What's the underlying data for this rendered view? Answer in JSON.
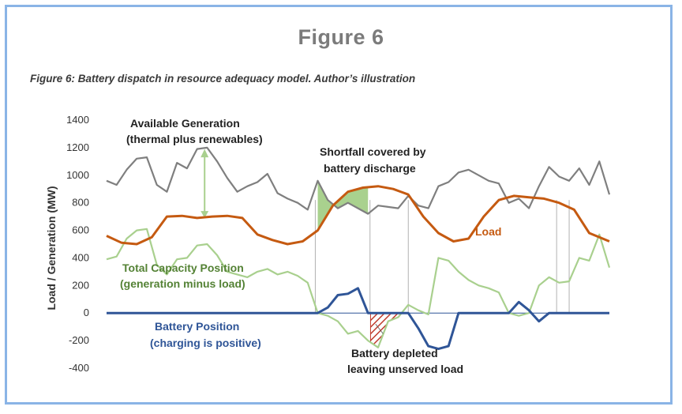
{
  "figure_title": "Figure 6",
  "caption": "Figure 6: Battery dispatch in resource adequacy model. Author’s illustration",
  "chart_data": {
    "type": "line",
    "ylabel": "Load / Generation (MW)",
    "ylim": [
      -400,
      1400
    ],
    "yticks": [
      -400,
      -200,
      0,
      200,
      400,
      600,
      800,
      1000,
      1200,
      1400
    ],
    "xlim": [
      0,
      100
    ],
    "series": [
      {
        "name": "Available Generation",
        "color": "#7f7f7f",
        "x": [
          0,
          2,
          4,
          6,
          8,
          10,
          12,
          14,
          16,
          18,
          20,
          22,
          24,
          26,
          28,
          30,
          32,
          34,
          36,
          38,
          40,
          42,
          44,
          46,
          48,
          50,
          52,
          54,
          56,
          58,
          60,
          62,
          64,
          66,
          68,
          70,
          72,
          74,
          76,
          78,
          80,
          82,
          84,
          86,
          88,
          90,
          92,
          94,
          96,
          98,
          100
        ],
        "values": [
          960,
          930,
          1040,
          1120,
          1130,
          930,
          880,
          1090,
          1050,
          1190,
          1200,
          1100,
          980,
          880,
          920,
          950,
          1010,
          870,
          830,
          800,
          750,
          960,
          820,
          760,
          800,
          760,
          720,
          780,
          770,
          760,
          850,
          780,
          760,
          920,
          950,
          1020,
          1040,
          1000,
          960,
          940,
          800,
          830,
          760,
          920,
          1060,
          990,
          960,
          1050,
          930,
          1100,
          860
        ]
      },
      {
        "name": "Load",
        "color": "#c55a11",
        "x": [
          0,
          3,
          6,
          9,
          12,
          15,
          18,
          21,
          24,
          27,
          30,
          33,
          36,
          39,
          42,
          45,
          48,
          51,
          54,
          57,
          60,
          63,
          66,
          69,
          72,
          75,
          78,
          81,
          84,
          87,
          90,
          93,
          96,
          100
        ],
        "values": [
          560,
          510,
          500,
          550,
          700,
          705,
          690,
          700,
          705,
          690,
          570,
          530,
          500,
          520,
          600,
          780,
          880,
          910,
          920,
          900,
          860,
          700,
          580,
          520,
          540,
          700,
          820,
          850,
          840,
          830,
          800,
          750,
          580,
          520
        ]
      },
      {
        "name": "Total Capacity Position",
        "color": "#a9d08e",
        "x": [
          0,
          2,
          4,
          6,
          8,
          10,
          12,
          14,
          16,
          18,
          20,
          22,
          24,
          26,
          28,
          30,
          32,
          34,
          36,
          38,
          40,
          42,
          44,
          46,
          48,
          50,
          52,
          54,
          56,
          58,
          60,
          62,
          64,
          66,
          68,
          70,
          72,
          74,
          76,
          78,
          80,
          82,
          84,
          86,
          88,
          90,
          92,
          94,
          96,
          98,
          100
        ],
        "values": [
          390,
          410,
          540,
          600,
          610,
          350,
          280,
          390,
          400,
          490,
          500,
          420,
          300,
          280,
          260,
          300,
          320,
          280,
          300,
          270,
          220,
          0,
          -20,
          -60,
          -150,
          -130,
          -200,
          -250,
          -60,
          -30,
          60,
          20,
          -10,
          400,
          380,
          300,
          240,
          200,
          180,
          150,
          0,
          -20,
          0,
          200,
          260,
          220,
          230,
          400,
          380,
          570,
          330
        ]
      },
      {
        "name": "Battery Position",
        "color": "#2f5597",
        "x": [
          0,
          10,
          20,
          30,
          40,
          42,
          44,
          46,
          48,
          50,
          52,
          54,
          56,
          58,
          60,
          62,
          64,
          66,
          68,
          70,
          72,
          74,
          76,
          78,
          80,
          82,
          84,
          86,
          88,
          90,
          92,
          94,
          96,
          98,
          100
        ],
        "values": [
          0,
          0,
          0,
          0,
          0,
          0,
          40,
          130,
          140,
          180,
          0,
          0,
          0,
          0,
          0,
          -110,
          -240,
          -260,
          -240,
          0,
          0,
          0,
          0,
          0,
          0,
          80,
          20,
          -60,
          0,
          0,
          0,
          0,
          0,
          0,
          0
        ]
      }
    ],
    "annotations": [
      {
        "text": "Available Generation",
        "color": "#222222"
      },
      {
        "text": "(thermal plus renewables)",
        "color": "#222222"
      },
      {
        "text": "Shortfall covered by",
        "color": "#222222"
      },
      {
        "text": "battery discharge",
        "color": "#222222"
      },
      {
        "text": "Load",
        "color": "#c55a11"
      },
      {
        "text": "Total Capacity Position",
        "color": "#548235"
      },
      {
        "text": "(generation minus load)",
        "color": "#548235"
      },
      {
        "text": "Battery Position",
        "color": "#2f5597"
      },
      {
        "text": "(charging is positive)",
        "color": "#2f5597"
      },
      {
        "text": "Battery depleted",
        "color": "#222222"
      },
      {
        "text": "leaving unserved load",
        "color": "#222222"
      }
    ]
  }
}
